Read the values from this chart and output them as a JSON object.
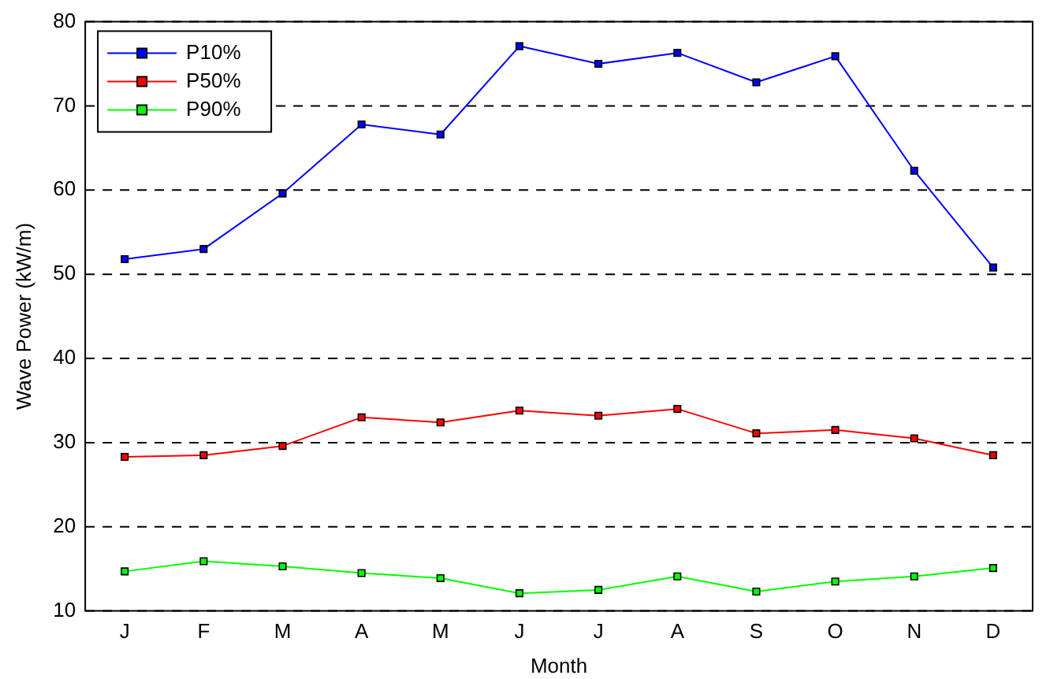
{
  "chart_data": {
    "type": "line",
    "xlabel": "Month",
    "ylabel": "Wave Power (kW/m)",
    "categories": [
      "J",
      "F",
      "M",
      "A",
      "M",
      "J",
      "J",
      "A",
      "S",
      "O",
      "N",
      "D"
    ],
    "series": [
      {
        "name": "P10%",
        "color": "#0000ff",
        "values": [
          51.8,
          53,
          59.6,
          67.8,
          66.6,
          77.1,
          75,
          76.3,
          72.8,
          75.9,
          62.3,
          50.8
        ]
      },
      {
        "name": "P50%",
        "color": "#ff0000",
        "values": [
          28.3,
          28.5,
          29.6,
          33,
          32.4,
          33.8,
          33.2,
          34,
          31.1,
          31.5,
          30.5,
          28.5
        ]
      },
      {
        "name": "P90%",
        "color": "#00ff00",
        "values": [
          14.7,
          15.9,
          15.3,
          14.5,
          13.9,
          12.1,
          12.5,
          14.1,
          12.3,
          13.5,
          14.1,
          15.1
        ]
      }
    ],
    "ylim": [
      10,
      80
    ],
    "yticks": [
      10,
      20,
      30,
      40,
      50,
      60,
      70,
      80
    ],
    "grid": "y",
    "legend": "top left",
    "marker": "square",
    "line_style": "solid"
  }
}
